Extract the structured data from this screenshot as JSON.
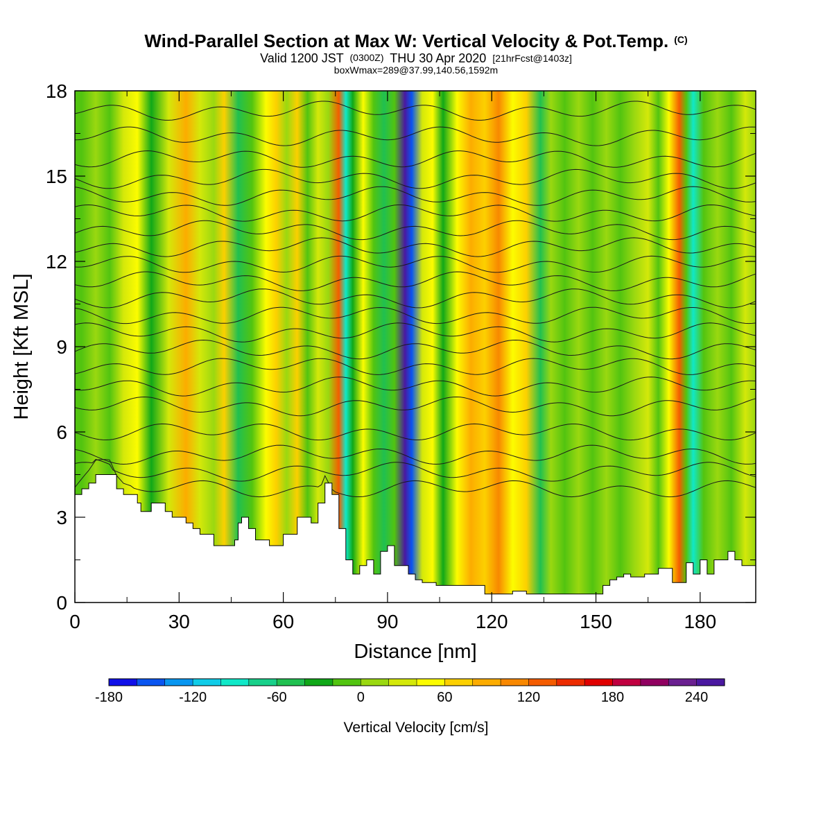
{
  "title": {
    "main": "Wind-Parallel Section at Max W: Vertical Velocity & Pot.Temp.",
    "main_suffix": "(C)",
    "valid_prefix": "Valid 1200 JST",
    "valid_zulu": "(0300Z)",
    "valid_date": "THU 30 Apr 2020",
    "forecast": "[21hrFcst@1403z]",
    "box_info": "boxWmax=289@37.99,140.56,1592m"
  },
  "chart_data": {
    "type": "heatmap",
    "xlabel": "Distance [nm]",
    "ylabel": "Height [Kft MSL]",
    "xlim": [
      0,
      196
    ],
    "ylim": [
      0,
      18
    ],
    "x_ticks": [
      0,
      30,
      60,
      90,
      120,
      150,
      180
    ],
    "y_ticks": [
      0,
      3,
      6,
      9,
      12,
      15,
      18
    ],
    "x_tick_labels": [
      "0",
      "30",
      "60",
      "90",
      "120",
      "150",
      "180"
    ],
    "y_tick_labels": [
      "0",
      "3",
      "6",
      "9",
      "12",
      "15",
      "18"
    ],
    "colorbar": {
      "title": "Vertical Velocity [cm/s]",
      "range": [
        -180,
        260
      ],
      "step": 20,
      "labels": [
        "-180",
        "-120",
        "-60",
        "0",
        "60",
        "120",
        "180",
        "240"
      ],
      "label_values": [
        -180,
        -120,
        -60,
        0,
        60,
        120,
        180,
        240
      ],
      "colors": [
        "#1010e8",
        "#0a55f0",
        "#0896f0",
        "#10cce8",
        "#10e8c8",
        "#18d08a",
        "#20c050",
        "#10a818",
        "#52c410",
        "#9ad810",
        "#d4e80a",
        "#fcfc00",
        "#fcd000",
        "#fcac00",
        "#f88800",
        "#f45c00",
        "#ec2c00",
        "#e00000",
        "#c00040",
        "#900060",
        "#6a2090",
        "#4a18a0"
      ]
    },
    "velocity_columns": [
      {
        "x": 2,
        "w": -20
      },
      {
        "x": 6,
        "w": 10
      },
      {
        "x": 10,
        "w": -10
      },
      {
        "x": 14,
        "w": 20
      },
      {
        "x": 18,
        "w": 45
      },
      {
        "x": 22,
        "w": -40
      },
      {
        "x": 27,
        "w": 35
      },
      {
        "x": 32,
        "w": 90
      },
      {
        "x": 36,
        "w": 30
      },
      {
        "x": 40,
        "w": 10
      },
      {
        "x": 43,
        "w": 60
      },
      {
        "x": 47,
        "w": -50
      },
      {
        "x": 51,
        "w": -5
      },
      {
        "x": 55,
        "w": 40
      },
      {
        "x": 58,
        "w": 60
      },
      {
        "x": 61,
        "w": 10
      },
      {
        "x": 64,
        "w": 70
      },
      {
        "x": 67,
        "w": -20
      },
      {
        "x": 70,
        "w": 30
      },
      {
        "x": 73,
        "w": 10
      },
      {
        "x": 76,
        "w": 130
      },
      {
        "x": 78,
        "w": -100
      },
      {
        "x": 80,
        "w": -40
      },
      {
        "x": 83,
        "w": 40
      },
      {
        "x": 86,
        "w": -20
      },
      {
        "x": 89,
        "w": -60
      },
      {
        "x": 92,
        "w": -10
      },
      {
        "x": 95,
        "w": 260
      },
      {
        "x": 97,
        "w": -150
      },
      {
        "x": 100,
        "w": 20
      },
      {
        "x": 103,
        "w": 50
      },
      {
        "x": 106,
        "w": -30
      },
      {
        "x": 110,
        "w": 40
      },
      {
        "x": 114,
        "w": 90
      },
      {
        "x": 118,
        "w": 70
      },
      {
        "x": 122,
        "w": 110
      },
      {
        "x": 126,
        "w": 40
      },
      {
        "x": 130,
        "w": 60
      },
      {
        "x": 134,
        "w": -50
      },
      {
        "x": 137,
        "w": 10
      },
      {
        "x": 141,
        "w": -15
      },
      {
        "x": 145,
        "w": 10
      },
      {
        "x": 149,
        "w": -10
      },
      {
        "x": 153,
        "w": 15
      },
      {
        "x": 157,
        "w": -10
      },
      {
        "x": 161,
        "w": 10
      },
      {
        "x": 165,
        "w": 20
      },
      {
        "x": 168,
        "w": -15
      },
      {
        "x": 171,
        "w": 40
      },
      {
        "x": 174,
        "w": 130
      },
      {
        "x": 176,
        "w": -5
      },
      {
        "x": 178,
        "w": -90
      },
      {
        "x": 181,
        "w": -20
      },
      {
        "x": 185,
        "w": 10
      },
      {
        "x": 189,
        "w": -15
      },
      {
        "x": 193,
        "w": 30
      },
      {
        "x": 196,
        "w": 10
      }
    ],
    "terrain": {
      "x": [
        0,
        2,
        4,
        6,
        10,
        12,
        14,
        16,
        18,
        19,
        20,
        22,
        24,
        26,
        28,
        30,
        32,
        34,
        36,
        38,
        40,
        42,
        44,
        46,
        47,
        48,
        50,
        52,
        54,
        56,
        58,
        60,
        62,
        64,
        66,
        68,
        70,
        72,
        74,
        76,
        78,
        80,
        82,
        84,
        86,
        88,
        90,
        92,
        94,
        96,
        98,
        100,
        104,
        110,
        118,
        122,
        126,
        130,
        136,
        140,
        144,
        148,
        150,
        152,
        154,
        156,
        158,
        160,
        162,
        164,
        166,
        168,
        170,
        172,
        174,
        176,
        178,
        180,
        182,
        184,
        186,
        188,
        190,
        192,
        196
      ],
      "y": [
        3.8,
        4.0,
        4.2,
        4.5,
        4.5,
        4.0,
        3.8,
        3.8,
        3.5,
        3.2,
        3.2,
        3.5,
        3.5,
        3.2,
        3.0,
        3.0,
        2.8,
        2.6,
        2.4,
        2.4,
        2.0,
        2.0,
        2.0,
        2.2,
        2.8,
        3.0,
        2.6,
        2.2,
        2.2,
        2.0,
        2.0,
        2.4,
        2.4,
        3.0,
        3.0,
        2.8,
        3.5,
        4.2,
        3.8,
        2.6,
        1.5,
        1.0,
        1.3,
        1.5,
        1.0,
        1.8,
        2.0,
        1.3,
        1.3,
        1.0,
        0.8,
        0.7,
        0.6,
        0.6,
        0.3,
        0.3,
        0.4,
        0.3,
        0.3,
        0.3,
        0.3,
        0.3,
        0.3,
        0.6,
        0.8,
        0.9,
        1.0,
        0.9,
        0.9,
        1.0,
        1.0,
        1.2,
        1.2,
        0.7,
        0.7,
        1.4,
        1.0,
        1.5,
        1.0,
        1.5,
        1.5,
        1.8,
        1.5,
        1.3,
        1.3
      ]
    },
    "theta_contours_kft": [
      4.0,
      4.6,
      5.2,
      6.0,
      6.9,
      7.6,
      8.3,
      8.9,
      9.5,
      10.1,
      10.7,
      11.3,
      11.9,
      12.5,
      13.1,
      13.7,
      14.3,
      14.9,
      15.6,
      16.4,
      17.3
    ]
  }
}
